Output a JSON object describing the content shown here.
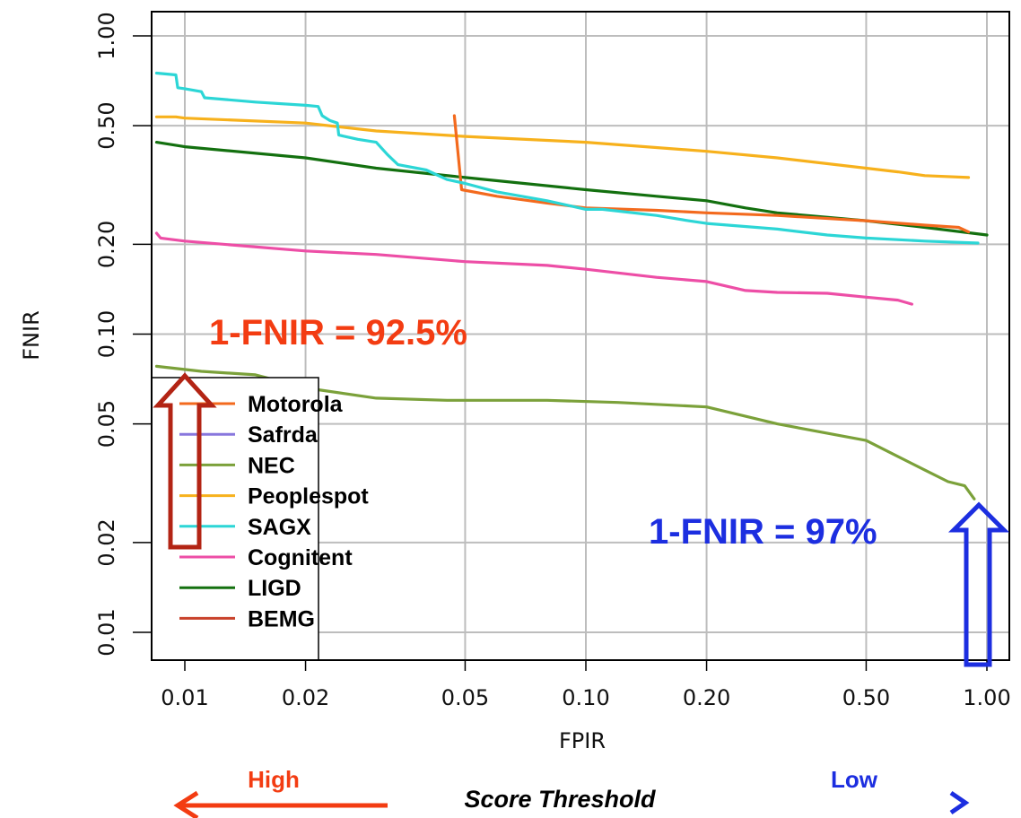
{
  "chart_data": {
    "type": "line",
    "xlabel": "FPIR",
    "ylabel": "FNIR",
    "x_scale": "log",
    "y_scale": "log",
    "xlim": [
      0.0085,
      1.05
    ],
    "ylim": [
      0.0085,
      1.3
    ],
    "x_ticks": [
      "0.01",
      "0.02",
      "0.05",
      "0.10",
      "0.20",
      "0.50",
      "1.00"
    ],
    "x_tick_values": [
      0.01,
      0.02,
      0.05,
      0.1,
      0.2,
      0.5,
      1.0
    ],
    "y_ticks": [
      "0.01",
      "0.02",
      "0.05",
      "0.10",
      "0.20",
      "0.50",
      "1.00"
    ],
    "y_tick_values": [
      0.01,
      0.02,
      0.05,
      0.1,
      0.2,
      0.5,
      1.0
    ],
    "grid": true,
    "legend_position": "bottom-left",
    "series": [
      {
        "name": "Motorola",
        "color": "#f36a1e",
        "points": [
          [
            0.047,
            0.54
          ],
          [
            0.049,
            0.305
          ],
          [
            0.06,
            0.29
          ],
          [
            0.08,
            0.275
          ],
          [
            0.1,
            0.265
          ],
          [
            0.15,
            0.26
          ],
          [
            0.2,
            0.255
          ],
          [
            0.3,
            0.25
          ],
          [
            0.5,
            0.24
          ],
          [
            0.7,
            0.232
          ],
          [
            0.85,
            0.228
          ],
          [
            0.9,
            0.22
          ]
        ]
      },
      {
        "name": "Safrda",
        "color": "#8877dd",
        "points": []
      },
      {
        "name": "NEC",
        "color": "#7ba13a",
        "points": [
          [
            0.0085,
            0.078
          ],
          [
            0.011,
            0.075
          ],
          [
            0.015,
            0.073
          ],
          [
            0.02,
            0.066
          ],
          [
            0.03,
            0.061
          ],
          [
            0.045,
            0.06
          ],
          [
            0.08,
            0.06
          ],
          [
            0.12,
            0.059
          ],
          [
            0.2,
            0.057
          ],
          [
            0.3,
            0.05
          ],
          [
            0.5,
            0.044
          ],
          [
            0.7,
            0.035
          ],
          [
            0.8,
            0.032
          ],
          [
            0.88,
            0.031
          ],
          [
            0.93,
            0.028
          ]
        ]
      },
      {
        "name": "Peoplespot",
        "color": "#f7b11c",
        "points": [
          [
            0.0085,
            0.535
          ],
          [
            0.0095,
            0.535
          ],
          [
            0.01,
            0.53
          ],
          [
            0.02,
            0.51
          ],
          [
            0.03,
            0.48
          ],
          [
            0.05,
            0.46
          ],
          [
            0.1,
            0.44
          ],
          [
            0.2,
            0.41
          ],
          [
            0.3,
            0.39
          ],
          [
            0.5,
            0.36
          ],
          [
            0.6,
            0.35
          ],
          [
            0.7,
            0.34
          ],
          [
            0.9,
            0.335
          ]
        ]
      },
      {
        "name": "SAGX",
        "color": "#2cd6d6",
        "points": [
          [
            0.0085,
            0.75
          ],
          [
            0.0095,
            0.74
          ],
          [
            0.0096,
            0.67
          ],
          [
            0.01,
            0.665
          ],
          [
            0.011,
            0.65
          ],
          [
            0.0112,
            0.62
          ],
          [
            0.015,
            0.6
          ],
          [
            0.02,
            0.585
          ],
          [
            0.0215,
            0.58
          ],
          [
            0.022,
            0.54
          ],
          [
            0.023,
            0.52
          ],
          [
            0.024,
            0.51
          ],
          [
            0.0242,
            0.465
          ],
          [
            0.027,
            0.45
          ],
          [
            0.03,
            0.44
          ],
          [
            0.032,
            0.4
          ],
          [
            0.034,
            0.37
          ],
          [
            0.04,
            0.355
          ],
          [
            0.045,
            0.33
          ],
          [
            0.05,
            0.32
          ],
          [
            0.06,
            0.3
          ],
          [
            0.08,
            0.28
          ],
          [
            0.1,
            0.262
          ],
          [
            0.11,
            0.262
          ],
          [
            0.15,
            0.25
          ],
          [
            0.18,
            0.24
          ],
          [
            0.2,
            0.235
          ],
          [
            0.3,
            0.225
          ],
          [
            0.4,
            0.215
          ],
          [
            0.5,
            0.21
          ],
          [
            0.7,
            0.205
          ],
          [
            0.95,
            0.202
          ]
        ]
      },
      {
        "name": "Cognitent",
        "color": "#ed4ea6",
        "points": [
          [
            0.0085,
            0.218
          ],
          [
            0.0087,
            0.21
          ],
          [
            0.01,
            0.205
          ],
          [
            0.02,
            0.19
          ],
          [
            0.03,
            0.185
          ],
          [
            0.05,
            0.175
          ],
          [
            0.08,
            0.17
          ],
          [
            0.1,
            0.165
          ],
          [
            0.15,
            0.155
          ],
          [
            0.2,
            0.15
          ],
          [
            0.25,
            0.14
          ],
          [
            0.3,
            0.138
          ],
          [
            0.4,
            0.137
          ],
          [
            0.5,
            0.133
          ],
          [
            0.6,
            0.13
          ],
          [
            0.65,
            0.126
          ]
        ]
      },
      {
        "name": "LIGD",
        "color": "#13700f",
        "points": [
          [
            0.0085,
            0.44
          ],
          [
            0.01,
            0.425
          ],
          [
            0.02,
            0.39
          ],
          [
            0.03,
            0.36
          ],
          [
            0.05,
            0.335
          ],
          [
            0.1,
            0.305
          ],
          [
            0.15,
            0.29
          ],
          [
            0.2,
            0.28
          ],
          [
            0.25,
            0.265
          ],
          [
            0.3,
            0.255
          ],
          [
            0.5,
            0.24
          ],
          [
            0.7,
            0.228
          ],
          [
            1.0,
            0.215
          ]
        ]
      },
      {
        "name": "BEMG",
        "color": "#c8412a",
        "points": []
      }
    ],
    "annotations": [
      {
        "text": "1-FNIR = 92.5%",
        "color": "#f33c12"
      },
      {
        "text": "1-FNIR = 97%",
        "color": "#1c2ee0"
      }
    ]
  },
  "legend_labels": [
    "Motorola",
    "Safrda",
    "NEC",
    "Peoplespot",
    "SAGX",
    "Cognitent",
    "LIGD",
    "BEMG"
  ],
  "footer": {
    "high": "High",
    "low": "Low",
    "threshold": "Score Threshold",
    "high_color": "#f33c12",
    "low_color": "#1c2ee0"
  },
  "arrows": {
    "up_left_color": "#b32414",
    "up_right_color": "#1c2ee0"
  }
}
